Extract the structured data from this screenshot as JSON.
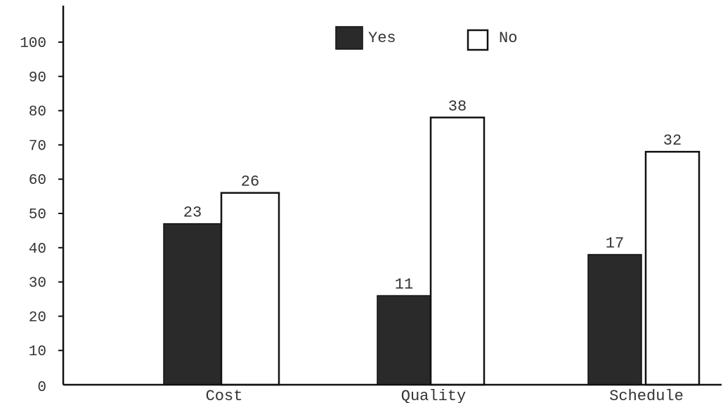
{
  "chart_data": {
    "type": "bar",
    "categories": [
      "Cost",
      "Quality",
      "Schedule"
    ],
    "series": [
      {
        "name": "Yes",
        "values": [
          47,
          26,
          38
        ],
        "labels": [
          "23",
          "11",
          "17"
        ],
        "color": "#2a2a2a"
      },
      {
        "name": "No",
        "values": [
          56,
          78,
          68
        ],
        "labels": [
          "26",
          "38",
          "32"
        ],
        "color": "#ffffff"
      }
    ],
    "yticks": [
      "0",
      "10",
      "20",
      "30",
      "40",
      "50",
      "60",
      "70",
      "80",
      "90",
      "100"
    ],
    "ylim": [
      0,
      100
    ],
    "grid": false,
    "legend": "top-center"
  }
}
